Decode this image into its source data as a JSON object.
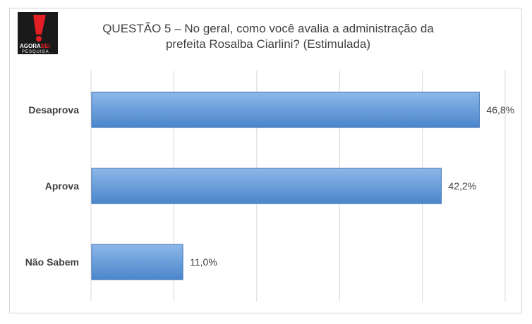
{
  "logo": {
    "icon": "agorasei-exclamation-logo",
    "text_line1_a": "AGORA",
    "text_line1_b": "SEI",
    "text_line2": "PESQUISA",
    "colors": {
      "red": "#e31e24",
      "black": "#1a1a1a"
    }
  },
  "chart_data": {
    "type": "bar",
    "orientation": "horizontal",
    "title_line1": "QUESTÃO 5 – No geral, como você avalia a administração da",
    "title_line2": "prefeita Rosalba Ciarlini? (Estimulada)",
    "categories": [
      "Desaprova",
      "Aprova",
      "Não Sabem"
    ],
    "values": [
      46.8,
      42.2,
      11.0
    ],
    "value_labels": [
      "46,8%",
      "42,2%",
      "11,0%"
    ],
    "xlim": [
      0,
      50
    ],
    "grid": true,
    "legend": "none",
    "colors": {
      "bar_top": "#8db8e8",
      "bar_bottom": "#4a86cc",
      "bar_edge": "#3c72b4",
      "grid": "#d9d9d9"
    }
  }
}
